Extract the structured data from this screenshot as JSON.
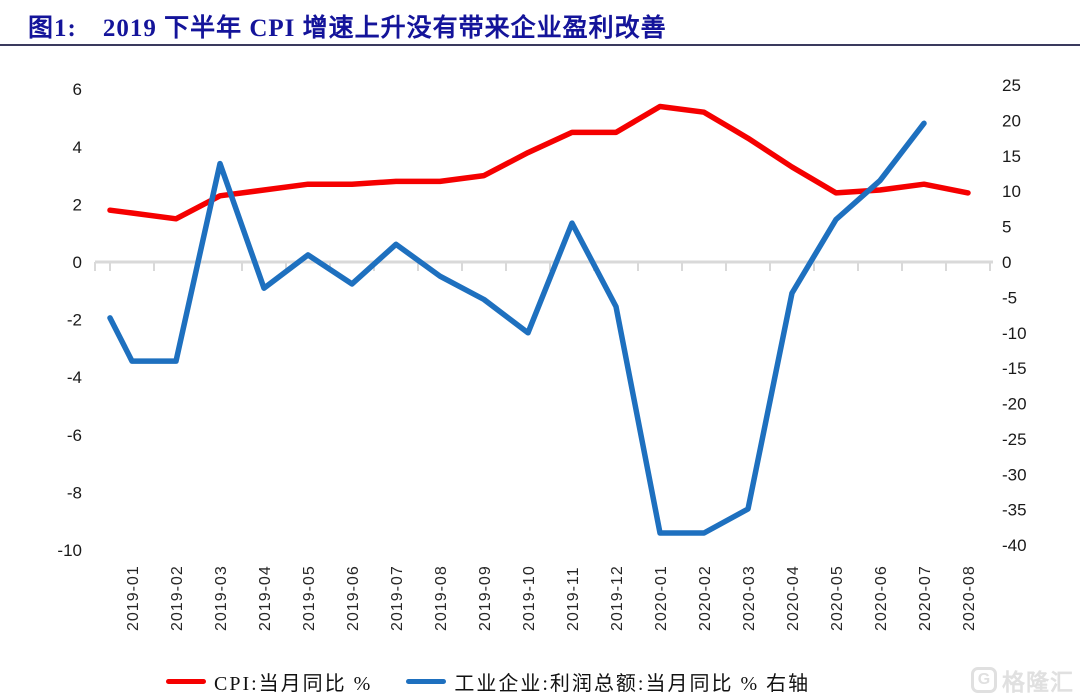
{
  "header": {
    "figure_label": "图1:",
    "title": "2019 下半年 CPI 增速上升没有带来企业盈利改善"
  },
  "chart_data": {
    "type": "line",
    "title": "2019 下半年 CPI 增速上升没有带来企业盈利改善",
    "categories": [
      "2019-01",
      "2019-02",
      "2019-03",
      "2019-04",
      "2019-05",
      "2019-06",
      "2019-07",
      "2019-08",
      "2019-09",
      "2019-10",
      "2019-11",
      "2019-12",
      "2020-01",
      "2020-02",
      "2020-03",
      "2020-04",
      "2020-05",
      "2020-06",
      "2020-07",
      "2020-08"
    ],
    "series": [
      {
        "name": "CPI:当月同比 %",
        "axis": "left",
        "color": "#f50000",
        "lead_in_value": 1.8,
        "values": [
          1.7,
          1.5,
          2.3,
          2.5,
          2.7,
          2.7,
          2.8,
          2.8,
          3.0,
          3.8,
          4.5,
          4.5,
          5.4,
          5.2,
          4.3,
          3.3,
          2.4,
          2.5,
          2.7,
          2.4
        ]
      },
      {
        "name": "工业企业:利润总额:当月同比 % 右轴",
        "axis": "right",
        "color": "#1e70bf",
        "lead_in_value": -7.9,
        "values": [
          -14.0,
          -14.0,
          13.9,
          -3.7,
          1.0,
          -3.1,
          2.5,
          -2.0,
          -5.3,
          -10.0,
          5.5,
          -6.3,
          -38.3,
          -38.3,
          -34.9,
          -4.4,
          6.0,
          11.5,
          19.6,
          null
        ]
      }
    ],
    "left_axis": {
      "ticks": [
        6,
        4,
        2,
        0,
        -2,
        -4,
        -6,
        -8,
        -10
      ],
      "range": [
        -10,
        6
      ]
    },
    "right_axis": {
      "ticks": [
        25,
        20,
        15,
        10,
        5,
        0,
        -5,
        -10,
        -15,
        -20,
        -25,
        -30,
        -35,
        -40
      ],
      "range": [
        -40,
        25
      ]
    },
    "grid": "zero-line-only",
    "legend_position": "bottom",
    "zero_line_color": "#d9d9d9"
  },
  "watermark": {
    "logo_letter": "G",
    "text": "格隆汇"
  }
}
